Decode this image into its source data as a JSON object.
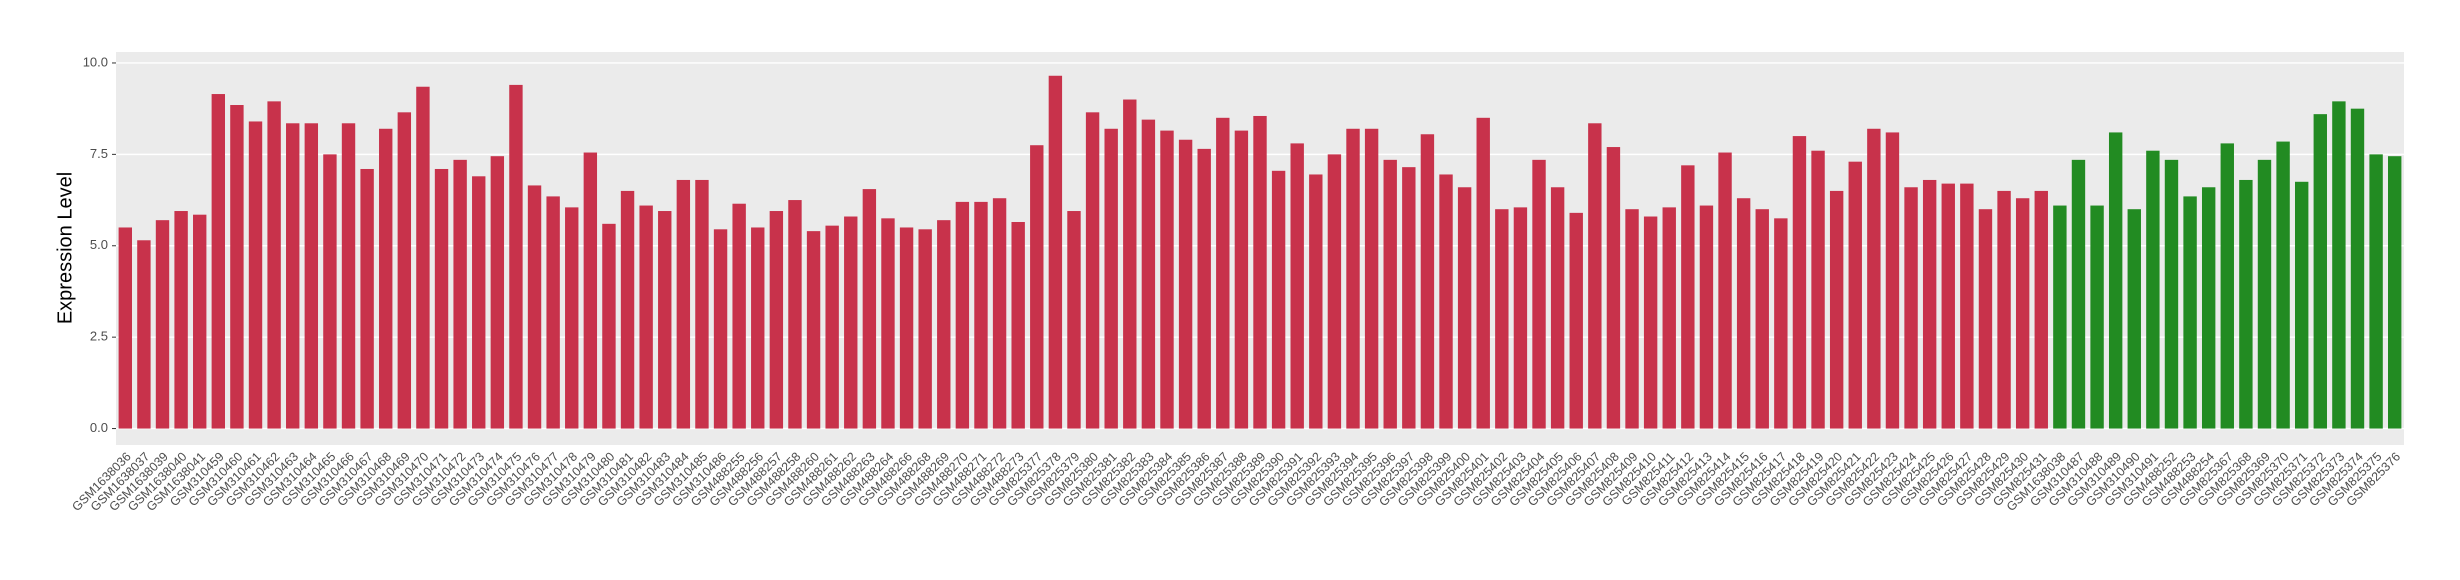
{
  "chart_data": {
    "type": "bar",
    "ylabel": "Expression Level",
    "categories": [
      "GSM1638036",
      "GSM1638037",
      "GSM1638039",
      "GSM1638040",
      "GSM1638041",
      "GSM310459",
      "GSM310460",
      "GSM310461",
      "GSM310462",
      "GSM310463",
      "GSM310464",
      "GSM310465",
      "GSM310466",
      "GSM310467",
      "GSM310468",
      "GSM310469",
      "GSM310470",
      "GSM310471",
      "GSM310472",
      "GSM310473",
      "GSM310474",
      "GSM310475",
      "GSM310476",
      "GSM310477",
      "GSM310478",
      "GSM310479",
      "GSM310480",
      "GSM310481",
      "GSM310482",
      "GSM310483",
      "GSM310484",
      "GSM310485",
      "GSM310486",
      "GSM488255",
      "GSM488256",
      "GSM488257",
      "GSM488258",
      "GSM488260",
      "GSM488261",
      "GSM488262",
      "GSM488263",
      "GSM488264",
      "GSM488266",
      "GSM488268",
      "GSM488269",
      "GSM488270",
      "GSM488271",
      "GSM488272",
      "GSM488273",
      "GSM825377",
      "GSM825378",
      "GSM825379",
      "GSM825380",
      "GSM825381",
      "GSM825382",
      "GSM825383",
      "GSM825384",
      "GSM825385",
      "GSM825386",
      "GSM825387",
      "GSM825388",
      "GSM825389",
      "GSM825390",
      "GSM825391",
      "GSM825392",
      "GSM825393",
      "GSM825394",
      "GSM825395",
      "GSM825396",
      "GSM825397",
      "GSM825398",
      "GSM825399",
      "GSM825400",
      "GSM825401",
      "GSM825402",
      "GSM825403",
      "GSM825404",
      "GSM825405",
      "GSM825406",
      "GSM825407",
      "GSM825408",
      "GSM825409",
      "GSM825410",
      "GSM825411",
      "GSM825412",
      "GSM825413",
      "GSM825414",
      "GSM825415",
      "GSM825416",
      "GSM825417",
      "GSM825418",
      "GSM825419",
      "GSM825420",
      "GSM825421",
      "GSM825422",
      "GSM825423",
      "GSM825424",
      "GSM825425",
      "GSM825426",
      "GSM825427",
      "GSM825428",
      "GSM825429",
      "GSM825430",
      "GSM825431",
      "GSM1638038",
      "GSM310487",
      "GSM310488",
      "GSM310489",
      "GSM310490",
      "GSM310491",
      "GSM488252",
      "GSM488253",
      "GSM488254",
      "GSM825367",
      "GSM825368",
      "GSM825369",
      "GSM825370",
      "GSM825371",
      "GSM825372",
      "GSM825373",
      "GSM825374",
      "GSM825375",
      "GSM825376"
    ],
    "values": [
      5.5,
      5.15,
      5.7,
      5.95,
      5.85,
      9.15,
      8.85,
      8.4,
      8.95,
      8.35,
      8.35,
      7.5,
      8.35,
      7.1,
      8.2,
      8.65,
      9.35,
      7.1,
      7.35,
      6.9,
      7.45,
      9.4,
      6.65,
      6.35,
      6.05,
      7.55,
      5.6,
      6.5,
      6.1,
      5.95,
      6.8,
      6.8,
      5.45,
      6.15,
      5.5,
      5.95,
      6.25,
      5.4,
      5.55,
      5.8,
      6.55,
      5.75,
      5.5,
      5.45,
      5.7,
      6.2,
      6.2,
      6.3,
      5.65,
      7.75,
      9.65,
      5.95,
      8.65,
      8.2,
      9.0,
      8.45,
      8.15,
      7.9,
      7.65,
      8.5,
      8.15,
      8.55,
      7.05,
      7.8,
      6.95,
      7.5,
      8.2,
      8.2,
      7.35,
      7.15,
      8.05,
      6.95,
      6.6,
      8.5,
      6.0,
      6.05,
      7.35,
      6.6,
      5.9,
      8.35,
      7.7,
      6.0,
      5.8,
      6.05,
      7.2,
      6.1,
      7.55,
      6.3,
      6.0,
      5.75,
      8.0,
      7.6,
      6.5,
      7.3,
      8.2,
      8.1,
      6.6,
      6.8,
      6.7,
      6.7,
      6.0,
      6.5,
      6.3,
      6.5,
      6.1,
      7.35,
      6.1,
      8.1,
      6.0,
      7.6,
      7.35,
      6.35,
      6.6,
      7.8,
      6.8,
      7.35,
      7.85,
      6.75,
      8.6,
      8.95,
      8.75,
      7.5,
      7.45
    ],
    "colors": [
      "#c8324b",
      "#c8324b",
      "#c8324b",
      "#c8324b",
      "#c8324b",
      "#c8324b",
      "#c8324b",
      "#c8324b",
      "#c8324b",
      "#c8324b",
      "#c8324b",
      "#c8324b",
      "#c8324b",
      "#c8324b",
      "#c8324b",
      "#c8324b",
      "#c8324b",
      "#c8324b",
      "#c8324b",
      "#c8324b",
      "#c8324b",
      "#c8324b",
      "#c8324b",
      "#c8324b",
      "#c8324b",
      "#c8324b",
      "#c8324b",
      "#c8324b",
      "#c8324b",
      "#c8324b",
      "#c8324b",
      "#c8324b",
      "#c8324b",
      "#c8324b",
      "#c8324b",
      "#c8324b",
      "#c8324b",
      "#c8324b",
      "#c8324b",
      "#c8324b",
      "#c8324b",
      "#c8324b",
      "#c8324b",
      "#c8324b",
      "#c8324b",
      "#c8324b",
      "#c8324b",
      "#c8324b",
      "#c8324b",
      "#c8324b",
      "#c8324b",
      "#c8324b",
      "#c8324b",
      "#c8324b",
      "#c8324b",
      "#c8324b",
      "#c8324b",
      "#c8324b",
      "#c8324b",
      "#c8324b",
      "#c8324b",
      "#c8324b",
      "#c8324b",
      "#c8324b",
      "#c8324b",
      "#c8324b",
      "#c8324b",
      "#c8324b",
      "#c8324b",
      "#c8324b",
      "#c8324b",
      "#c8324b",
      "#c8324b",
      "#c8324b",
      "#c8324b",
      "#c8324b",
      "#c8324b",
      "#c8324b",
      "#c8324b",
      "#c8324b",
      "#c8324b",
      "#c8324b",
      "#c8324b",
      "#c8324b",
      "#c8324b",
      "#c8324b",
      "#c8324b",
      "#c8324b",
      "#c8324b",
      "#c8324b",
      "#c8324b",
      "#c8324b",
      "#c8324b",
      "#c8324b",
      "#c8324b",
      "#c8324b",
      "#c8324b",
      "#c8324b",
      "#c8324b",
      "#c8324b",
      "#c8324b",
      "#c8324b",
      "#c8324b",
      "#c8324b",
      "#228b22",
      "#228b22",
      "#228b22",
      "#228b22",
      "#228b22",
      "#228b22",
      "#228b22",
      "#228b22",
      "#228b22",
      "#228b22",
      "#228b22",
      "#228b22",
      "#228b22",
      "#228b22",
      "#228b22",
      "#228b22",
      "#228b22",
      "#228b22",
      "#228b22"
    ],
    "ylim": [
      -0.45,
      10.3
    ],
    "yticks": [
      {
        "value": 0,
        "label": "0.0"
      },
      {
        "value": 2.5,
        "label": "2.5"
      },
      {
        "value": 5,
        "label": "5.0"
      },
      {
        "value": 7.5,
        "label": "7.5"
      },
      {
        "value": 10,
        "label": "10.0"
      }
    ],
    "grid": true
  }
}
